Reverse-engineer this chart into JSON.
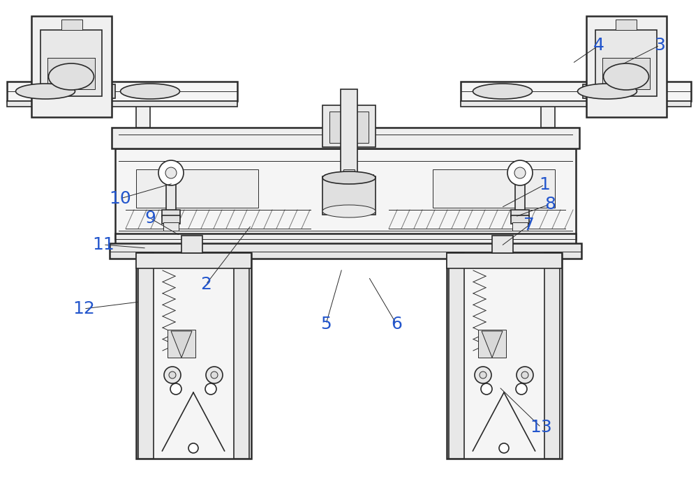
{
  "bg_color": "#ffffff",
  "line_color": "#2a2a2a",
  "number_color": "#2255cc",
  "fig_width": 10.0,
  "fig_height": 7.13,
  "dpi": 100
}
